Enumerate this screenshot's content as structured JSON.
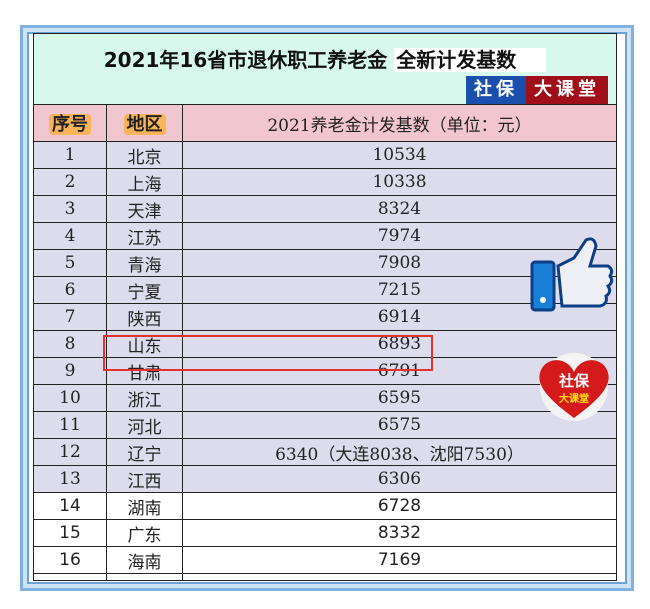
{
  "title": {
    "main": "2021年16省市退休职工养老金",
    "highlight": "全新计发基数"
  },
  "brand": {
    "part1": "社保",
    "part2": "大课堂"
  },
  "headers": {
    "index": "序号",
    "region": "地区",
    "value": "2021养老金计发基数（单位：元）"
  },
  "rows": [
    {
      "n": "1",
      "region": "北京",
      "value": "10534"
    },
    {
      "n": "2",
      "region": "上海",
      "value": "10338"
    },
    {
      "n": "3",
      "region": "天津",
      "value": "8324"
    },
    {
      "n": "4",
      "region": "江苏",
      "value": "7974"
    },
    {
      "n": "5",
      "region": "青海",
      "value": "7908"
    },
    {
      "n": "6",
      "region": "宁夏",
      "value": "7215"
    },
    {
      "n": "7",
      "region": "陕西",
      "value": "6914"
    },
    {
      "n": "8",
      "region": "山东",
      "value": "6893"
    },
    {
      "n": "9",
      "region": "甘肃",
      "value": "6791"
    },
    {
      "n": "10",
      "region": "浙江",
      "value": "6595"
    },
    {
      "n": "11",
      "region": "河北",
      "value": "6575"
    },
    {
      "n": "12",
      "region": "辽宁",
      "value": "6340（大连8038、沈阳7530）"
    },
    {
      "n": "13",
      "region": "江西",
      "value": "6306"
    },
    {
      "n": "14",
      "region": "湖南",
      "value": "6728"
    },
    {
      "n": "15",
      "region": "广东",
      "value": "8332"
    },
    {
      "n": "16",
      "region": "海南",
      "value": "7169"
    }
  ],
  "highlighted_row": "8",
  "stickers": {
    "heart_line1": "社保",
    "heart_line2": "大课堂",
    "thumb": "thumbs-up-icon"
  },
  "colors": {
    "title_bg": "#d8f8ee",
    "header_bg": "#f2c6cf",
    "row_bg": "#dcdcec",
    "highlight": "#e53030",
    "brand_blue": "#1a4fae",
    "brand_red": "#a0101a"
  }
}
